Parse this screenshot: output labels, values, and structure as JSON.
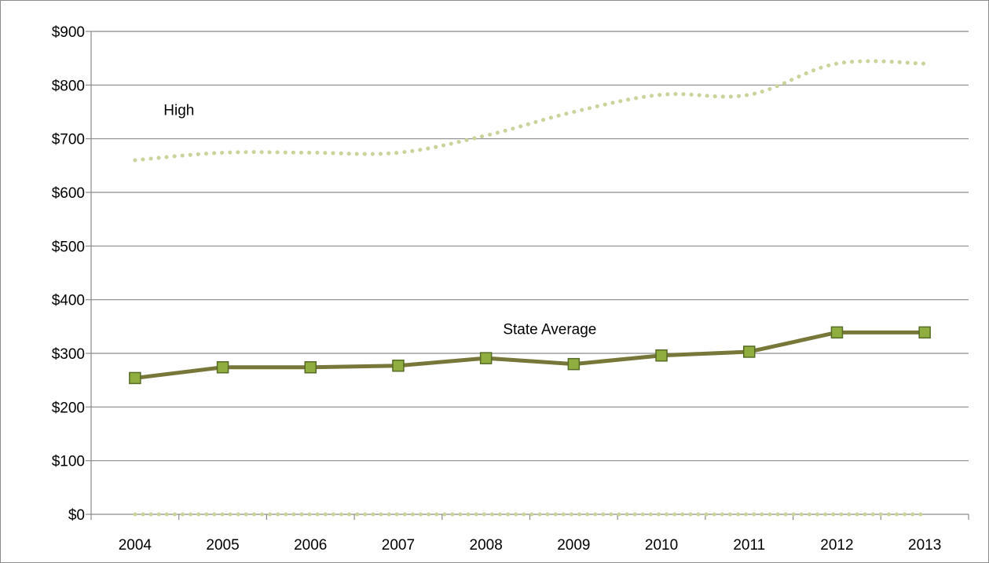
{
  "chart_data": {
    "type": "line",
    "title": "",
    "xlabel": "",
    "ylabel": "",
    "categories": [
      "2004",
      "2005",
      "2006",
      "2007",
      "2008",
      "2009",
      "2010",
      "2011",
      "2012",
      "2013"
    ],
    "ylim": [
      0,
      900
    ],
    "yticks": [
      0,
      100,
      200,
      300,
      400,
      500,
      600,
      700,
      800,
      900
    ],
    "ytick_labels": [
      "$0",
      "$100",
      "$200",
      "$300",
      "$400",
      "$500",
      "$600",
      "$700",
      "$800",
      "$900"
    ],
    "grid": "horizontal",
    "legend": "none",
    "series": [
      {
        "name": "High",
        "style": "dotted",
        "smooth": true,
        "color": "#c9d39a",
        "values": [
          660,
          674,
          674,
          674,
          706,
          750,
          782,
          782,
          840,
          840
        ]
      },
      {
        "name": "State Average",
        "style": "solid",
        "markers": "square",
        "color": "#77773a",
        "marker_color": "#8fae3f",
        "values": [
          254,
          274,
          274,
          277,
          291,
          280,
          296,
          303,
          339,
          339
        ]
      },
      {
        "style": "dotted",
        "color": "#c9d39a",
        "values": [
          0,
          0,
          0,
          0,
          0,
          0,
          0,
          0,
          0,
          0
        ]
      }
    ],
    "annotations": [
      {
        "text": "High",
        "series": "High"
      },
      {
        "text": "State Average",
        "series": "State Average"
      }
    ]
  }
}
